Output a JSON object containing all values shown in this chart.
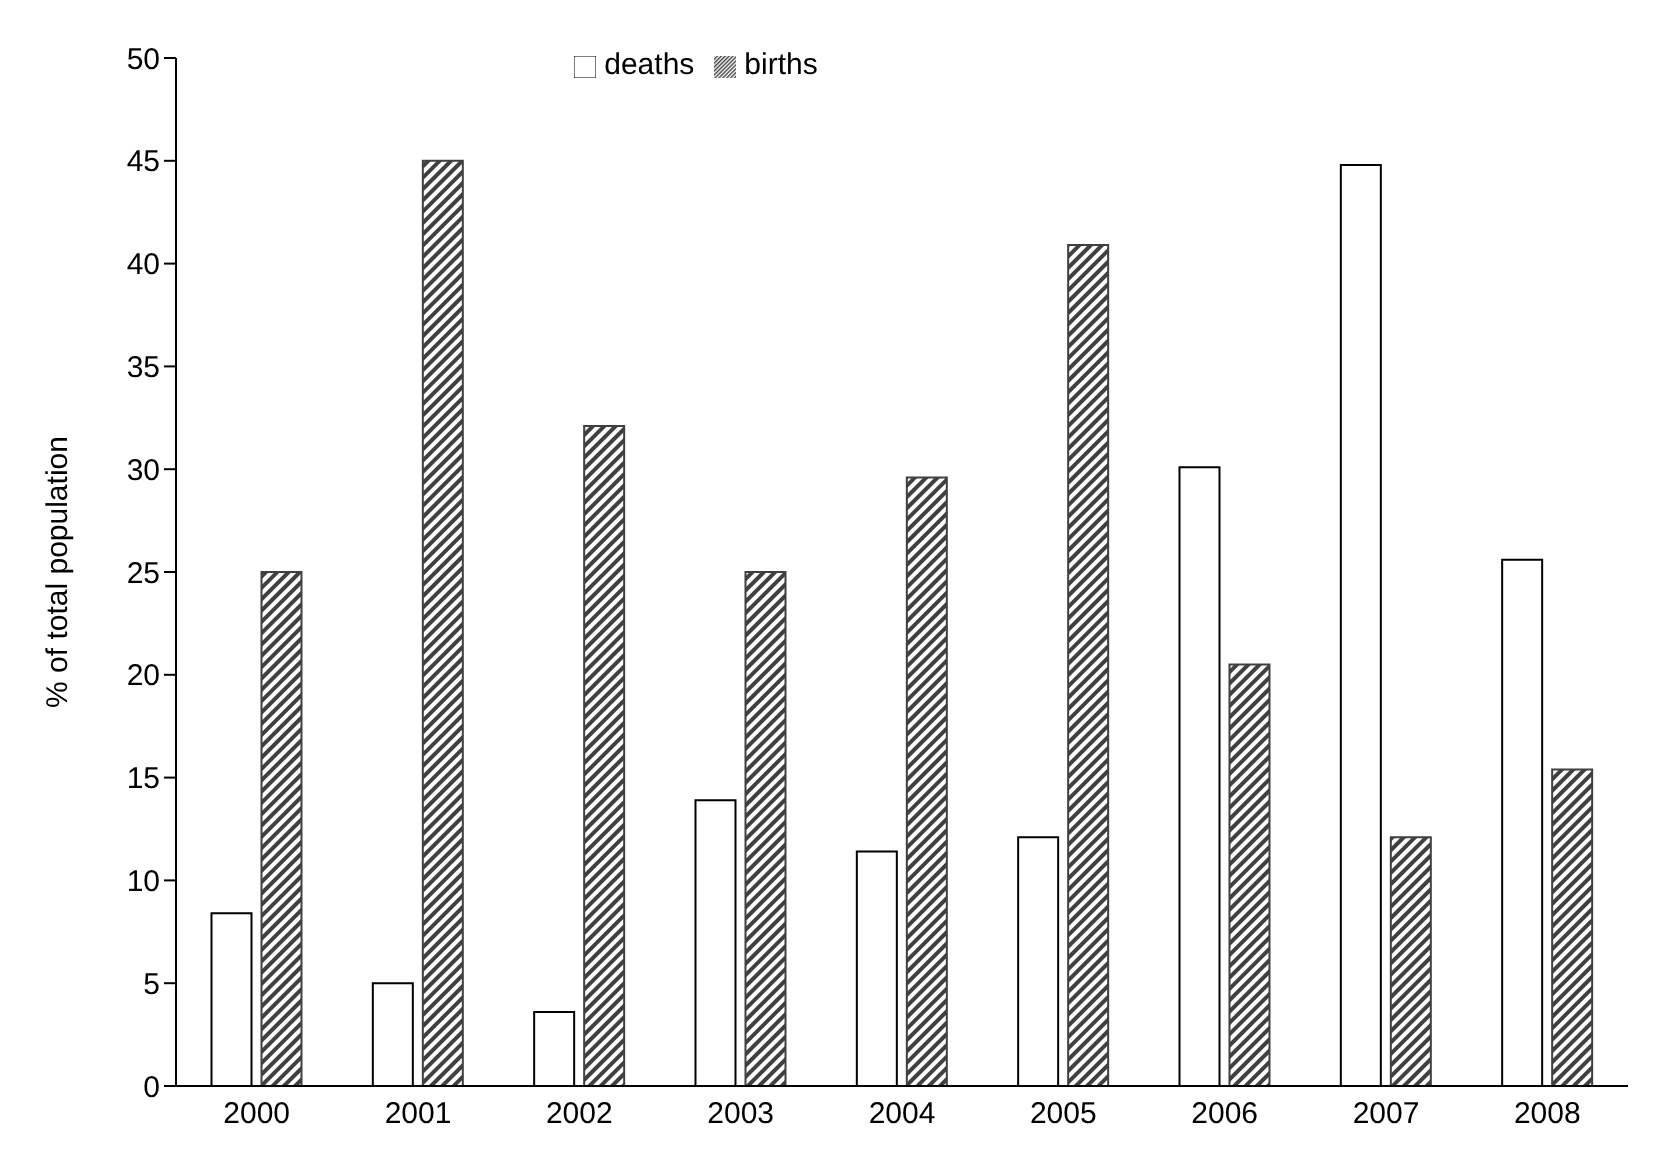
{
  "chart_data": {
    "type": "bar",
    "ylabel": "% of total population",
    "categories": [
      "2000",
      "2001",
      "2002",
      "2003",
      "2004",
      "2005",
      "2006",
      "2007",
      "2008"
    ],
    "series": [
      {
        "name": "deaths",
        "color": "#ffffff",
        "values": [
          8.4,
          5.0,
          3.6,
          13.9,
          11.4,
          12.1,
          30.1,
          44.8,
          25.6
        ]
      },
      {
        "name": "births",
        "color": "#404040",
        "values": [
          25.0,
          45.0,
          32.1,
          25.0,
          29.6,
          40.9,
          20.5,
          12.1,
          15.4
        ]
      }
    ],
    "ylim": [
      0,
      50
    ],
    "yticks": [
      0,
      5,
      10,
      15,
      20,
      25,
      30,
      35,
      40,
      45,
      50
    ],
    "grid": false,
    "legend": "top"
  }
}
